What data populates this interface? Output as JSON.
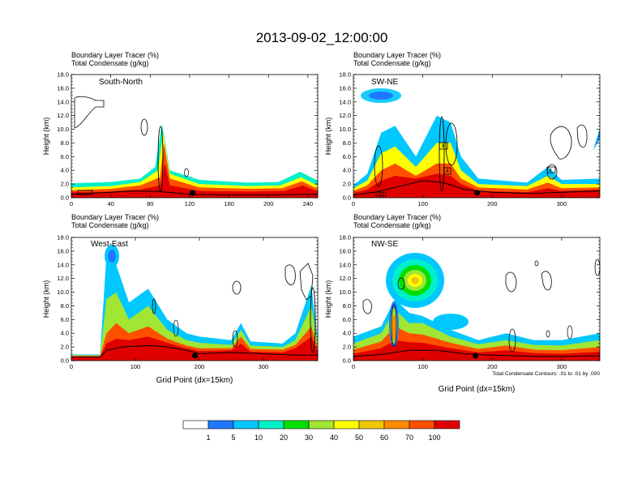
{
  "title": "2013-09-02_12:00:00",
  "colors": {
    "bins": [
      "#ffffff",
      "#1e78ff",
      "#00c8ff",
      "#00f0c8",
      "#00e000",
      "#a0e632",
      "#ffff00",
      "#f0c800",
      "#ff8c00",
      "#ff5000",
      "#e00000"
    ],
    "terrain": "#000000",
    "contour": "#000000"
  },
  "colorbar": {
    "labels": [
      "1",
      "5",
      "10",
      "20",
      "30",
      "40",
      "50",
      "60",
      "70",
      "100"
    ]
  },
  "x_axis_title": "Grid Point (dx=15km)",
  "contour_note": "Total Condensate Contours: .01 to .01 by .000",
  "chart_data": [
    {
      "type": "heatmap",
      "name": "South-North",
      "header1": "Boundary Layer Tracer   (%)",
      "header2": "Total Condensate   (g/kg)",
      "ylabel": "Height (km)",
      "ylim": [
        0,
        18
      ],
      "yticks": [
        "0.0",
        "2.0",
        "4.0",
        "6.0",
        "8.0",
        "10.0",
        "12.0",
        "14.0",
        "16.0",
        "18.0"
      ],
      "xlim": [
        0,
        250
      ],
      "xticks": [
        "0",
        "40",
        "80",
        "120",
        "160",
        "200",
        "240"
      ],
      "xlabel": "",
      "marker_x": 123,
      "terrain": [
        [
          0,
          0.5
        ],
        [
          30,
          0.7
        ],
        [
          60,
          1.0
        ],
        [
          90,
          0.9
        ],
        [
          120,
          0.5
        ],
        [
          160,
          0.4
        ],
        [
          200,
          0.4
        ],
        [
          240,
          0.5
        ],
        [
          250,
          0.5
        ]
      ],
      "layers": [
        {
          "bin": 3,
          "pts": [
            [
              0,
              2.1
            ],
            [
              40,
              2.3
            ],
            [
              70,
              2.8
            ],
            [
              85,
              4.5
            ],
            [
              92,
              10.8
            ],
            [
              100,
              4.0
            ],
            [
              130,
              2.6
            ],
            [
              180,
              2.2
            ],
            [
              210,
              2.3
            ],
            [
              232,
              3.8
            ],
            [
              250,
              2.5
            ]
          ]
        },
        {
          "bin": 6,
          "pts": [
            [
              0,
              1.5
            ],
            [
              40,
              1.7
            ],
            [
              70,
              2.3
            ],
            [
              88,
              4.0
            ],
            [
              93,
              9.5
            ],
            [
              100,
              3.5
            ],
            [
              130,
              2.0
            ],
            [
              180,
              1.7
            ],
            [
              212,
              1.8
            ],
            [
              233,
              3.0
            ],
            [
              250,
              1.8
            ]
          ]
        },
        {
          "bin": 9,
          "pts": [
            [
              0,
              1.1
            ],
            [
              40,
              1.3
            ],
            [
              70,
              1.8
            ],
            [
              90,
              3.0
            ],
            [
              94,
              8.0
            ],
            [
              100,
              2.8
            ],
            [
              130,
              1.5
            ],
            [
              180,
              1.3
            ],
            [
              214,
              1.4
            ],
            [
              234,
              2.4
            ],
            [
              250,
              1.3
            ]
          ]
        },
        {
          "bin": 10,
          "pts": [
            [
              0,
              0.8
            ],
            [
              40,
              0.9
            ],
            [
              70,
              1.2
            ],
            [
              90,
              1.8
            ],
            [
              95,
              5.0
            ],
            [
              100,
              1.8
            ],
            [
              130,
              1.0
            ],
            [
              180,
              0.9
            ],
            [
              216,
              1.0
            ],
            [
              235,
              1.8
            ],
            [
              250,
              0.9
            ]
          ]
        }
      ]
    },
    {
      "type": "heatmap",
      "name": "SW-NE",
      "header1": "Boundary Layer Tracer   (%)",
      "header2": "Total Condensate   (g/kg)",
      "ylabel": "Height (km)",
      "ylim": [
        0,
        18
      ],
      "yticks": [
        "0.0",
        "2.0",
        "4.0",
        "6.0",
        "8.0",
        "10.0",
        "12.0",
        "14.0",
        "16.0",
        "18.0"
      ],
      "xlim": [
        0,
        355
      ],
      "xticks": [
        "0",
        "100",
        "200",
        "300"
      ],
      "xlabel": "",
      "marker_x": 178,
      "terrain": [
        [
          0,
          0.4
        ],
        [
          30,
          0.8
        ],
        [
          60,
          1.5
        ],
        [
          100,
          2.5
        ],
        [
          130,
          2.2
        ],
        [
          160,
          1.2
        ],
        [
          200,
          0.8
        ],
        [
          260,
          0.6
        ],
        [
          300,
          0.8
        ],
        [
          355,
          1.0
        ]
      ],
      "layers": [
        {
          "bin": 2,
          "pts": [
            [
              0,
              1.8
            ],
            [
              20,
              3.5
            ],
            [
              40,
              9.5
            ],
            [
              60,
              10.5
            ],
            [
              90,
              6.0
            ],
            [
              120,
              12.0
            ],
            [
              140,
              11.0
            ],
            [
              155,
              6.0
            ],
            [
              180,
              2.8
            ],
            [
              250,
              2.2
            ],
            [
              280,
              4.5
            ],
            [
              300,
              2.6
            ],
            [
              355,
              2.8
            ]
          ]
        },
        {
          "bin": 6,
          "pts": [
            [
              0,
              1.4
            ],
            [
              20,
              2.5
            ],
            [
              40,
              6.5
            ],
            [
              60,
              7.5
            ],
            [
              90,
              4.5
            ],
            [
              120,
              8.0
            ],
            [
              140,
              8.0
            ],
            [
              155,
              4.0
            ],
            [
              180,
              2.0
            ],
            [
              250,
              1.7
            ],
            [
              280,
              3.2
            ],
            [
              300,
              2.0
            ],
            [
              355,
              2.0
            ]
          ]
        },
        {
          "bin": 9,
          "pts": [
            [
              0,
              1.0
            ],
            [
              20,
              1.8
            ],
            [
              40,
              4.0
            ],
            [
              60,
              5.0
            ],
            [
              90,
              3.2
            ],
            [
              120,
              5.0
            ],
            [
              140,
              5.0
            ],
            [
              155,
              2.8
            ],
            [
              180,
              1.5
            ],
            [
              250,
              1.2
            ],
            [
              280,
              2.2
            ],
            [
              300,
              1.4
            ],
            [
              355,
              1.5
            ]
          ]
        },
        {
          "bin": 10,
          "pts": [
            [
              0,
              0.7
            ],
            [
              20,
              1.2
            ],
            [
              40,
              2.5
            ],
            [
              60,
              3.2
            ],
            [
              90,
              2.8
            ],
            [
              120,
              3.5
            ],
            [
              140,
              3.2
            ],
            [
              155,
              2.0
            ],
            [
              180,
              1.0
            ],
            [
              250,
              0.8
            ],
            [
              280,
              1.4
            ],
            [
              300,
              1.0
            ],
            [
              355,
              1.2
            ]
          ]
        }
      ],
      "labels": [
        "8",
        "4",
        "4",
        ".01"
      ]
    },
    {
      "type": "heatmap",
      "name": "West-East",
      "header1": "Boundary Layer Tracer   (%)",
      "header2": "Total Condensate   (g/kg)",
      "ylabel": "Height (km)",
      "ylim": [
        0,
        18
      ],
      "yticks": [
        "0.0",
        "2.0",
        "4.0",
        "6.0",
        "8.0",
        "10.0",
        "12.0",
        "14.0",
        "16.0",
        "18.0"
      ],
      "xlim": [
        0,
        385
      ],
      "xticks": [
        "0",
        "100",
        "200",
        "300"
      ],
      "xlabel": "Grid Point (dx=15km)",
      "marker_x": 193,
      "terrain": [
        [
          0,
          0.5
        ],
        [
          45,
          0.5
        ],
        [
          55,
          1.5
        ],
        [
          80,
          2.0
        ],
        [
          120,
          2.2
        ],
        [
          150,
          2.0
        ],
        [
          180,
          1.5
        ],
        [
          200,
          1.0
        ],
        [
          250,
          1.2
        ],
        [
          300,
          1.0
        ],
        [
          350,
          0.8
        ],
        [
          385,
          0.8
        ]
      ],
      "layers": [
        {
          "bin": 2,
          "pts": [
            [
              0,
              0.9
            ],
            [
              45,
              0.9
            ],
            [
              55,
              15.5
            ],
            [
              70,
              14.0
            ],
            [
              90,
              8.5
            ],
            [
              120,
              10.5
            ],
            [
              150,
              6.0
            ],
            [
              180,
              4.0
            ],
            [
              200,
              3.5
            ],
            [
              250,
              3.0
            ],
            [
              265,
              5.5
            ],
            [
              280,
              2.8
            ],
            [
              330,
              2.5
            ],
            [
              350,
              4.0
            ],
            [
              375,
              11.0
            ],
            [
              385,
              3.0
            ]
          ]
        },
        {
          "bin": 5,
          "pts": [
            [
              0,
              0.8
            ],
            [
              45,
              0.8
            ],
            [
              55,
              9.0
            ],
            [
              70,
              10.0
            ],
            [
              90,
              6.0
            ],
            [
              120,
              8.0
            ],
            [
              150,
              4.5
            ],
            [
              180,
              3.0
            ],
            [
              200,
              2.6
            ],
            [
              250,
              2.3
            ],
            [
              265,
              4.5
            ],
            [
              280,
              2.2
            ],
            [
              330,
              2.0
            ],
            [
              350,
              3.0
            ],
            [
              375,
              8.0
            ],
            [
              385,
              2.4
            ]
          ]
        },
        {
          "bin": 9,
          "pts": [
            [
              0,
              0.7
            ],
            [
              45,
              0.7
            ],
            [
              55,
              4.0
            ],
            [
              70,
              5.5
            ],
            [
              90,
              4.0
            ],
            [
              120,
              5.0
            ],
            [
              150,
              3.2
            ],
            [
              180,
              2.2
            ],
            [
              200,
              1.8
            ],
            [
              250,
              1.8
            ],
            [
              265,
              3.5
            ],
            [
              280,
              1.7
            ],
            [
              330,
              1.6
            ],
            [
              350,
              2.3
            ],
            [
              375,
              5.0
            ],
            [
              385,
              1.8
            ]
          ]
        },
        {
          "bin": 10,
          "pts": [
            [
              0,
              0.6
            ],
            [
              45,
              0.6
            ],
            [
              55,
              2.5
            ],
            [
              70,
              3.2
            ],
            [
              90,
              3.0
            ],
            [
              120,
              3.5
            ],
            [
              150,
              2.6
            ],
            [
              180,
              1.8
            ],
            [
              200,
              1.4
            ],
            [
              250,
              1.5
            ],
            [
              265,
              2.5
            ],
            [
              280,
              1.3
            ],
            [
              330,
              1.2
            ],
            [
              350,
              1.8
            ],
            [
              375,
              3.5
            ],
            [
              385,
              1.3
            ]
          ]
        }
      ]
    },
    {
      "type": "heatmap",
      "name": "NW-SE",
      "header1": "Boundary Layer Tracer   (%)",
      "header2": "Total Condensate   (g/kg)",
      "ylabel": "Height (km)",
      "ylim": [
        0,
        18
      ],
      "yticks": [
        "0.0",
        "2.0",
        "4.0",
        "6.0",
        "8.0",
        "10.0",
        "12.0",
        "14.0",
        "16.0",
        "18.0"
      ],
      "xlim": [
        0,
        355
      ],
      "xticks": [
        "0",
        "100",
        "200",
        "300"
      ],
      "xlabel": "Grid Point (dx=15km)",
      "marker_x": 176,
      "terrain": [
        [
          0,
          0.6
        ],
        [
          40,
          0.9
        ],
        [
          80,
          1.5
        ],
        [
          120,
          1.5
        ],
        [
          160,
          1.0
        ],
        [
          200,
          0.8
        ],
        [
          260,
          0.6
        ],
        [
          300,
          0.6
        ],
        [
          355,
          0.7
        ]
      ],
      "layers": [
        {
          "bin": 2,
          "pts": [
            [
              0,
              3.5
            ],
            [
              40,
              5.0
            ],
            [
              60,
              9.0
            ],
            [
              80,
              7.0
            ],
            [
              100,
              6.5
            ],
            [
              140,
              4.5
            ],
            [
              180,
              3.0
            ],
            [
              220,
              4.0
            ],
            [
              260,
              3.0
            ],
            [
              300,
              3.0
            ],
            [
              355,
              4.0
            ]
          ]
        },
        {
          "bin": 5,
          "pts": [
            [
              0,
              2.5
            ],
            [
              40,
              4.0
            ],
            [
              60,
              7.5
            ],
            [
              80,
              5.5
            ],
            [
              100,
              5.5
            ],
            [
              140,
              3.5
            ],
            [
              180,
              2.4
            ],
            [
              220,
              3.0
            ],
            [
              260,
              2.3
            ],
            [
              300,
              2.2
            ],
            [
              355,
              3.0
            ]
          ]
        },
        {
          "bin": 9,
          "pts": [
            [
              0,
              1.6
            ],
            [
              40,
              2.8
            ],
            [
              60,
              5.0
            ],
            [
              80,
              4.0
            ],
            [
              100,
              3.8
            ],
            [
              140,
              2.6
            ],
            [
              180,
              1.7
            ],
            [
              220,
              2.2
            ],
            [
              260,
              1.6
            ],
            [
              300,
              1.5
            ],
            [
              355,
              2.0
            ]
          ]
        },
        {
          "bin": 10,
          "pts": [
            [
              0,
              1.0
            ],
            [
              40,
              1.8
            ],
            [
              60,
              3.0
            ],
            [
              80,
              2.7
            ],
            [
              100,
              2.6
            ],
            [
              140,
              1.8
            ],
            [
              180,
              1.2
            ],
            [
              220,
              1.5
            ],
            [
              260,
              1.1
            ],
            [
              300,
              1.0
            ],
            [
              355,
              1.3
            ]
          ]
        }
      ]
    }
  ]
}
